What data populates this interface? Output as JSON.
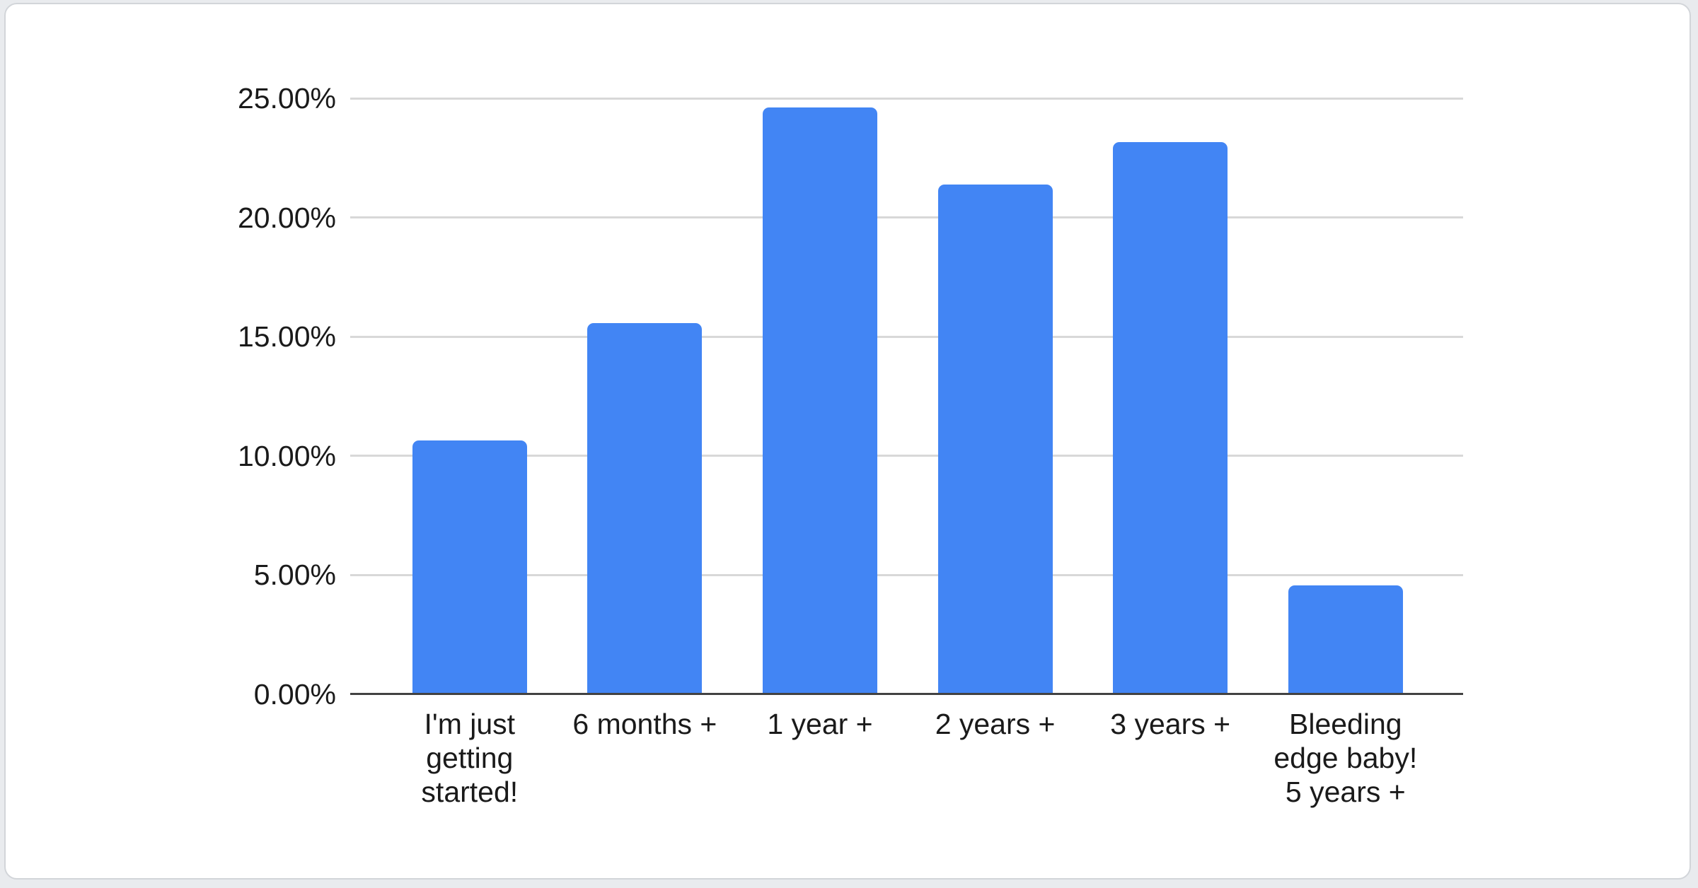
{
  "page": {
    "background_color": "#e9ebee",
    "card_background_color": "#ffffff",
    "card_border_color": "#d2d5d9"
  },
  "chart_data": {
    "type": "bar",
    "title": "",
    "xlabel": "",
    "ylabel": "",
    "categories": [
      "I'm just\ngetting\nstarted!",
      "6 months +",
      "1 year +",
      "2 years +",
      "3 years +",
      "Bleeding\nedge baby!\n5 years +"
    ],
    "values": [
      10.65,
      15.57,
      24.61,
      21.38,
      23.16,
      4.57
    ],
    "value_unit": "percent",
    "y_ticks": [
      "25.00%",
      "20.00%",
      "15.00%",
      "10.00%",
      "5.00%",
      "0.00%"
    ],
    "y_tick_values": [
      25,
      20,
      15,
      10,
      5,
      0
    ],
    "ylim": [
      0,
      25
    ],
    "grid": true,
    "legend": "none",
    "bar_color": "#4285f4",
    "gridline_color": "#d8d8d8",
    "axis_line_color": "#424242",
    "label_color": "#1a1a1a"
  }
}
